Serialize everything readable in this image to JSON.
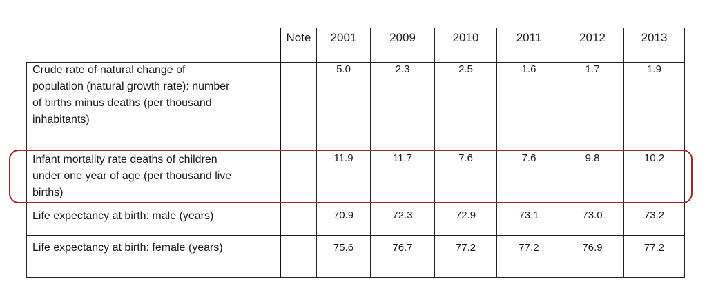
{
  "table": {
    "headers": {
      "note": "Note",
      "years": [
        "2001",
        "2009",
        "2010",
        "2011",
        "2012",
        "2013"
      ]
    },
    "rows": [
      {
        "label": "Crude rate of natural change of population (natural growth rate): number of births minus deaths (per thousand inhabitants)",
        "label_lines": [
          "Crude rate of natural change of",
          "population (natural growth rate): number",
          "of births minus deaths (per thousand",
          "inhabitants)"
        ],
        "note": "",
        "values": [
          "5.0",
          "2.3",
          "2.5",
          "1.6",
          "1.7",
          "1.9"
        ]
      },
      {
        "label": "Infant mortality rate deaths of children under one year of age (per thousand live births)",
        "label_lines": [
          "Infant mortality rate deaths of children",
          "under one year of age (per thousand live",
          "births)"
        ],
        "note": "",
        "values": [
          "11.9",
          "11.7",
          "7.6",
          "7.6",
          "9.8",
          "10.2"
        ],
        "highlighted": true
      },
      {
        "label": "Life expectancy at birth: male (years)",
        "label_lines": [
          "Life expectancy at birth: male (years)"
        ],
        "note": "",
        "values": [
          "70.9",
          "72.3",
          "72.9",
          "73.1",
          "73.0",
          "73.2"
        ]
      },
      {
        "label": "Life expectancy at birth: female (years)",
        "label_lines": [
          "Life expectancy at birth: female (years)"
        ],
        "note": "",
        "values": [
          "75.6",
          "76.7",
          "77.2",
          "77.2",
          "76.9",
          "77.2"
        ]
      }
    ],
    "highlight_color": "#a8242a"
  }
}
